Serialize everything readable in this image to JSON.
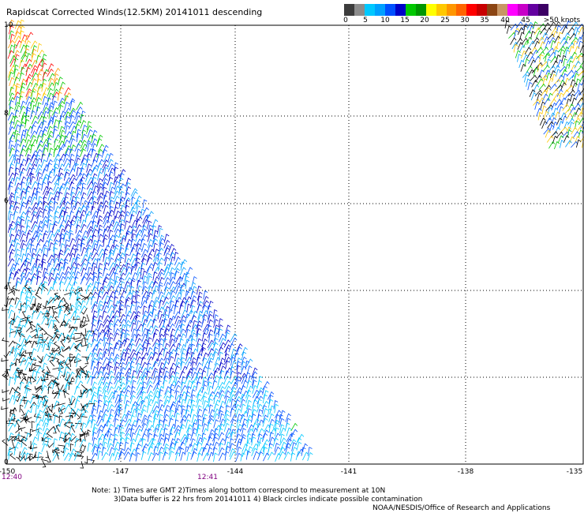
{
  "title": "Rapidscat Corrected Winds(12.5KM) 20141011 descending",
  "colorbar": {
    "colors": [
      "#3c3c3c",
      "#8c8c8c",
      "#00c8ff",
      "#00a0ff",
      "#0050ff",
      "#0000c8",
      "#00c800",
      "#009600",
      "#ffff00",
      "#ffc800",
      "#ff9600",
      "#ff6400",
      "#ff0000",
      "#c80000",
      "#8b4513",
      "#c89664",
      "#ff00ff",
      "#c800c8",
      "#6400a0",
      "#3c0064"
    ],
    "labels": [
      "0",
      "5",
      "10",
      "15",
      "20",
      "25",
      "30",
      "35",
      "40",
      "45",
      ">50 knots"
    ]
  },
  "axes": {
    "lon_labels": [
      "-150",
      "-147",
      "-144",
      "-141",
      "-138",
      "-135"
    ],
    "lat_labels": [
      "0",
      "2",
      "4",
      "6",
      "8",
      "10"
    ]
  },
  "times": {
    "left": "12:40",
    "mid": "12:41"
  },
  "notes": {
    "line1": "Note: 1) Times are GMT 2)Times along bottom correspond to measurement at 10N",
    "line2": "3)Data buffer is 22 hrs from 20141011 4) Black circles indicate possible contamination",
    "line3": "NOAA/NESDIS/Office of Research and Applications"
  }
}
